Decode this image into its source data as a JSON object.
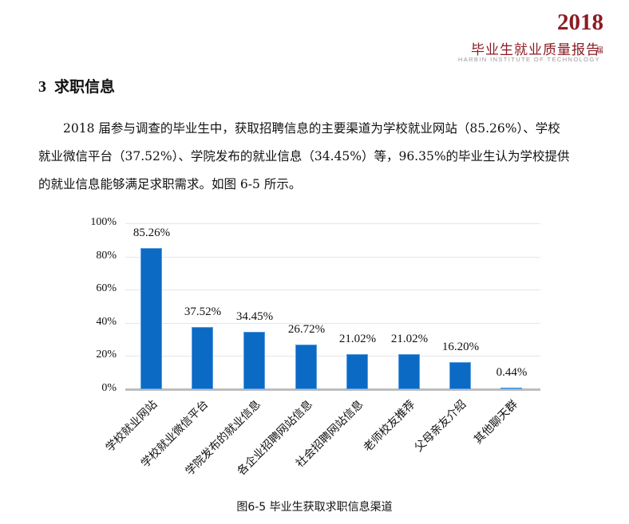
{
  "header": {
    "year": "2018",
    "year_suffix": "届",
    "title": "毕业生就业质量报告",
    "subtitle": "HARBIN INSTITUTE OF TECHNOLOGY",
    "brand_color": "#8b1c24"
  },
  "section": {
    "number": "3",
    "title": "求职信息"
  },
  "paragraph": {
    "lines": [
      "　　2018 届参与调查的毕业生中，获取招聘信息的主要渠道为学校就业网站（85.26%）、学校",
      "就业微信平台（37.52%）、学院发布的就业信息（34.45%）等，96.35%的毕业生认为学校提供",
      "的就业信息能够满足求职需求。如图 6-5 所示。"
    ]
  },
  "caption": "图6-5 毕业生获取求职信息渠道",
  "chart_data": {
    "type": "bar",
    "title": "图6-5 毕业生获取求职信息渠道",
    "xlabel": "",
    "ylabel": "",
    "categories": [
      "学校就业网站",
      "学校就业微信平台",
      "学院发布的就业信息",
      "各企业招聘网站信息",
      "社会招聘网站信息",
      "老师校友推荐",
      "父母亲友介绍",
      "其他聊天群"
    ],
    "values": [
      85.26,
      37.52,
      34.45,
      26.72,
      21.02,
      21.02,
      16.2,
      0.44
    ],
    "value_labels": [
      "85.26%",
      "37.52%",
      "34.45%",
      "26.72%",
      "21.02%",
      "21.02%",
      "16.20%",
      "0.44%"
    ],
    "yticks": [
      "0%",
      "20%",
      "40%",
      "60%",
      "80%",
      "100%"
    ],
    "ylim": [
      0,
      100
    ],
    "grid": true,
    "legend": "none",
    "bar_color": "#0b6ac4"
  }
}
